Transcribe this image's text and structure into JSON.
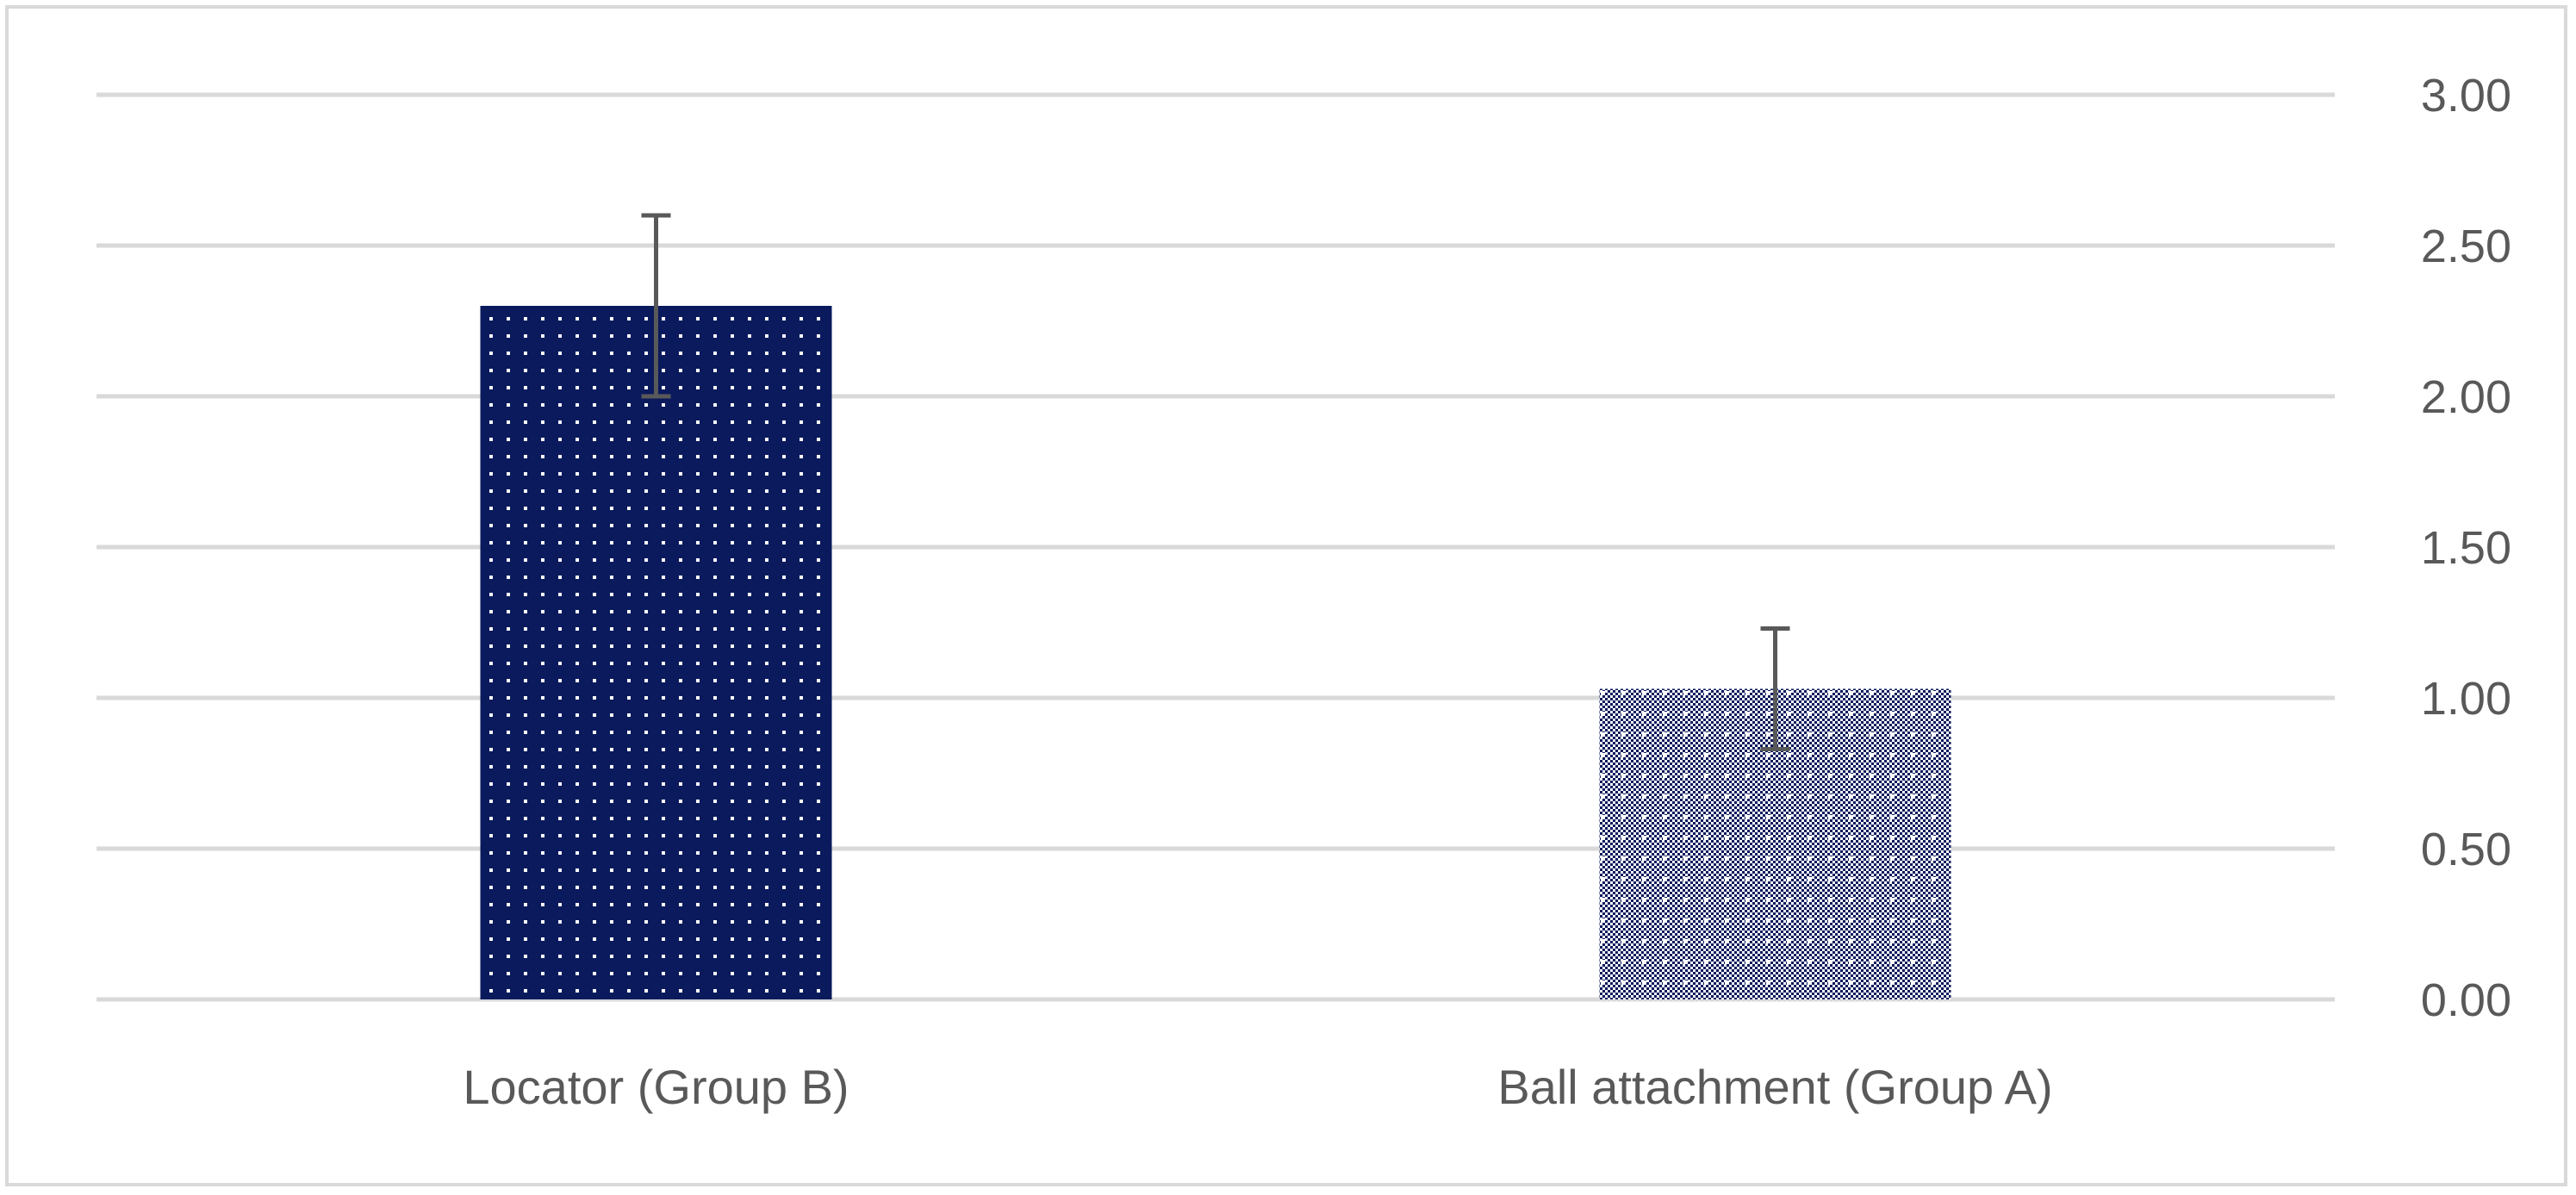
{
  "chart_data": {
    "type": "bar",
    "title": "",
    "xlabel": "",
    "ylabel": "",
    "categories": [
      "Locator (Group B)",
      "Ball attachment (Group A)"
    ],
    "values": [
      2.3,
      1.03
    ],
    "error_bars": [
      0.3,
      0.2
    ],
    "ylim": [
      0,
      3
    ],
    "y_ticks": [
      "0.00",
      "0.50",
      "1.00",
      "1.50",
      "2.00",
      "2.50",
      "3.00"
    ],
    "y_axis_side": "right",
    "grid": true,
    "legend": "none",
    "bar_color": "#0a1a5c",
    "bar_patterns": [
      "dotted",
      "checkered-dotted"
    ],
    "grid_color": "#d9d9d9",
    "error_bar_color": "#595959",
    "label_color": "#595959"
  }
}
